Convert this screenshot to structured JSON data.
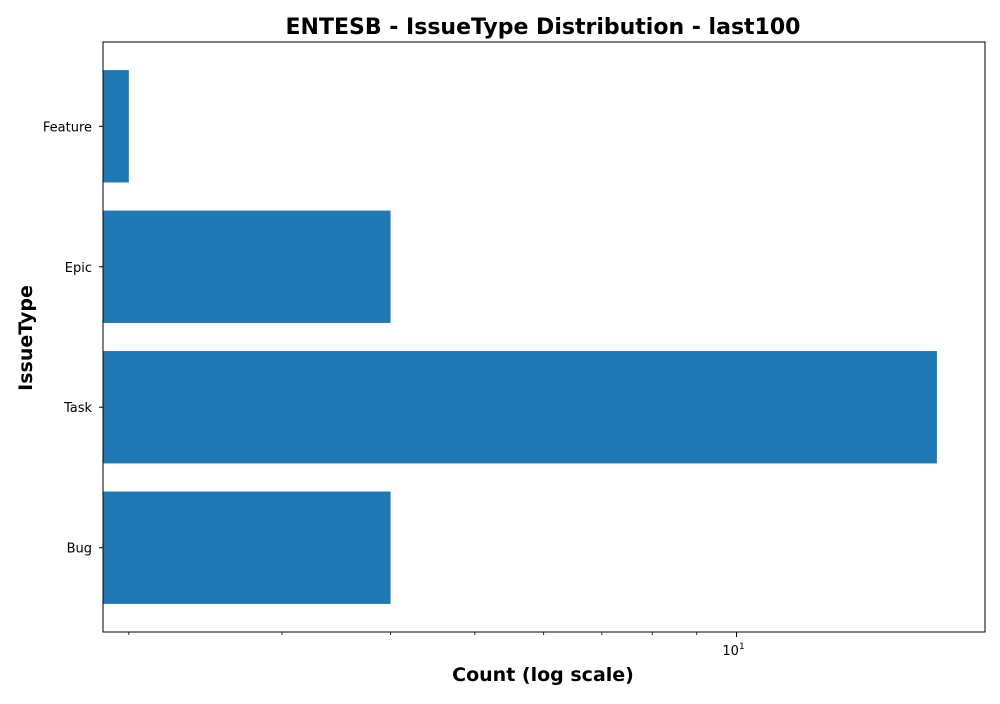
{
  "chart_data": {
    "type": "bar",
    "orientation": "horizontal",
    "title": "ENTESB - IssueType Distribution - last100",
    "xlabel": "Count (log scale)",
    "ylabel": "IssueType",
    "x_scale": "log",
    "x_tick_labels": [
      {
        "value": 10,
        "base": "10",
        "exponent": "1"
      }
    ],
    "categories": [
      "Bug",
      "Task",
      "Epic",
      "Feature"
    ],
    "values": [
      4,
      17,
      4,
      2
    ],
    "bar_color": "#1f77b4",
    "grid": false
  }
}
